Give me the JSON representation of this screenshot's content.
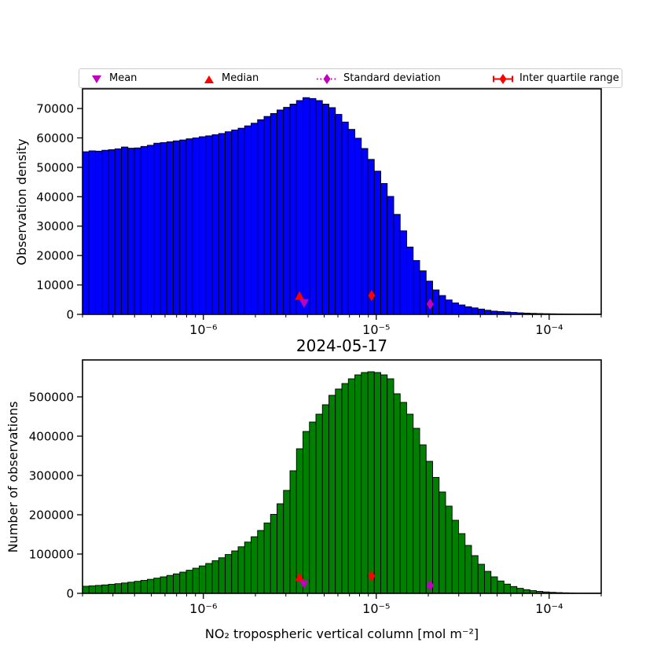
{
  "figure": {
    "title": "2024-05-17",
    "xlabel": "NO₂ tropospheric vertical column [mol m⁻²]"
  },
  "legend": {
    "items": [
      {
        "label": "Mean",
        "marker": "triangle-down",
        "color": "#bf00bf"
      },
      {
        "label": "Median",
        "marker": "triangle-up",
        "color": "#ff0000"
      },
      {
        "label": "Standard deviation",
        "marker": "diamond-dotted-line",
        "color": "#bf00bf"
      },
      {
        "label": "Inter quartile range",
        "marker": "diamond-solid-line",
        "color": "#ff0000"
      }
    ]
  },
  "chart_data": [
    {
      "type": "bar",
      "ylabel": "Observation density",
      "bar_color": "#0000ff",
      "edge_color": "#000000",
      "x_scale": "log",
      "xlim": [
        2e-07,
        0.0002
      ],
      "ylim": [
        0,
        76700
      ],
      "xtick_values": [
        1e-06,
        1e-05,
        0.0001
      ],
      "xtick_labels": [
        "10⁻⁶",
        "10⁻⁵",
        "10⁻⁴"
      ],
      "ytick_values": [
        0,
        10000,
        20000,
        30000,
        40000,
        50000,
        60000,
        70000
      ],
      "ytick_labels": [
        "0",
        "10000",
        "20000",
        "30000",
        "40000",
        "50000",
        "60000",
        "70000"
      ],
      "values": [
        55300,
        55600,
        55500,
        55800,
        56000,
        56300,
        56900,
        56500,
        56600,
        57100,
        57500,
        58200,
        58400,
        58700,
        59000,
        59300,
        59700,
        60000,
        60400,
        60700,
        61100,
        61500,
        62100,
        62700,
        63300,
        64100,
        65000,
        66200,
        67300,
        68300,
        69500,
        70400,
        71500,
        72700,
        73700,
        73400,
        72700,
        71500,
        70300,
        68000,
        65400,
        62900,
        59900,
        56400,
        52700,
        48700,
        44500,
        40100,
        34000,
        28400,
        22900,
        18300,
        14800,
        11300,
        8300,
        6400,
        4900,
        3900,
        3200,
        2600,
        2200,
        1800,
        1400,
        1100,
        950,
        800,
        650,
        520,
        420,
        340,
        280,
        230,
        190,
        160,
        130,
        110,
        90,
        75,
        65,
        55
      ],
      "markers": [
        {
          "name": "median",
          "shape": "triangle-up",
          "color": "#ff0000",
          "x": 3.6e-06,
          "y": 6400
        },
        {
          "name": "mean",
          "shape": "triangle-down",
          "color": "#bf00bf",
          "x": 3.82e-06,
          "y": 3700
        },
        {
          "name": "iqr",
          "shape": "diamond",
          "color": "#ff0000",
          "x": 9.4e-06,
          "y": 6400
        },
        {
          "name": "std",
          "shape": "diamond",
          "color": "#bf00bf",
          "x": 2.05e-05,
          "y": 3500
        }
      ]
    },
    {
      "type": "bar",
      "ylabel": "Number of observations",
      "bar_color": "#008000",
      "edge_color": "#000000",
      "x_scale": "log",
      "xlim": [
        2e-07,
        0.0002
      ],
      "ylim": [
        0,
        594000
      ],
      "xtick_values": [
        1e-06,
        1e-05,
        0.0001
      ],
      "xtick_labels": [
        "10⁻⁶",
        "10⁻⁵",
        "10⁻⁴"
      ],
      "ytick_values": [
        0,
        100000,
        200000,
        300000,
        400000,
        500000
      ],
      "ytick_labels": [
        "0",
        "100000",
        "200000",
        "300000",
        "400000",
        "500000"
      ],
      "values": [
        18000,
        19000,
        20200,
        21500,
        23000,
        24600,
        26400,
        28400,
        30600,
        33000,
        35700,
        38700,
        42000,
        45600,
        49600,
        54000,
        58800,
        64000,
        69800,
        76000,
        83000,
        90500,
        98800,
        108000,
        118500,
        130500,
        144000,
        160000,
        179000,
        201000,
        228000,
        262000,
        312000,
        368000,
        412000,
        436000,
        456000,
        480000,
        504000,
        520000,
        534000,
        546000,
        556000,
        562000,
        564000,
        562000,
        556000,
        546000,
        508000,
        486000,
        456000,
        420000,
        378000,
        336000,
        295000,
        258000,
        222000,
        186000,
        152000,
        122000,
        96000,
        74000,
        56000,
        42000,
        31500,
        23500,
        17400,
        12800,
        9400,
        6900,
        5000,
        3600,
        2600,
        1900,
        1400,
        1000,
        750,
        550,
        400,
        300
      ],
      "markers": [
        {
          "name": "median",
          "shape": "triangle-up",
          "color": "#ff0000",
          "x": 3.6e-06,
          "y": 42000
        },
        {
          "name": "mean",
          "shape": "triangle-down",
          "color": "#bf00bf",
          "x": 3.82e-06,
          "y": 22000
        },
        {
          "name": "iqr",
          "shape": "diamond",
          "color": "#ff0000",
          "x": 9.4e-06,
          "y": 44000
        },
        {
          "name": "std",
          "shape": "diamond",
          "color": "#bf00bf",
          "x": 2.05e-05,
          "y": 20000
        }
      ]
    }
  ]
}
